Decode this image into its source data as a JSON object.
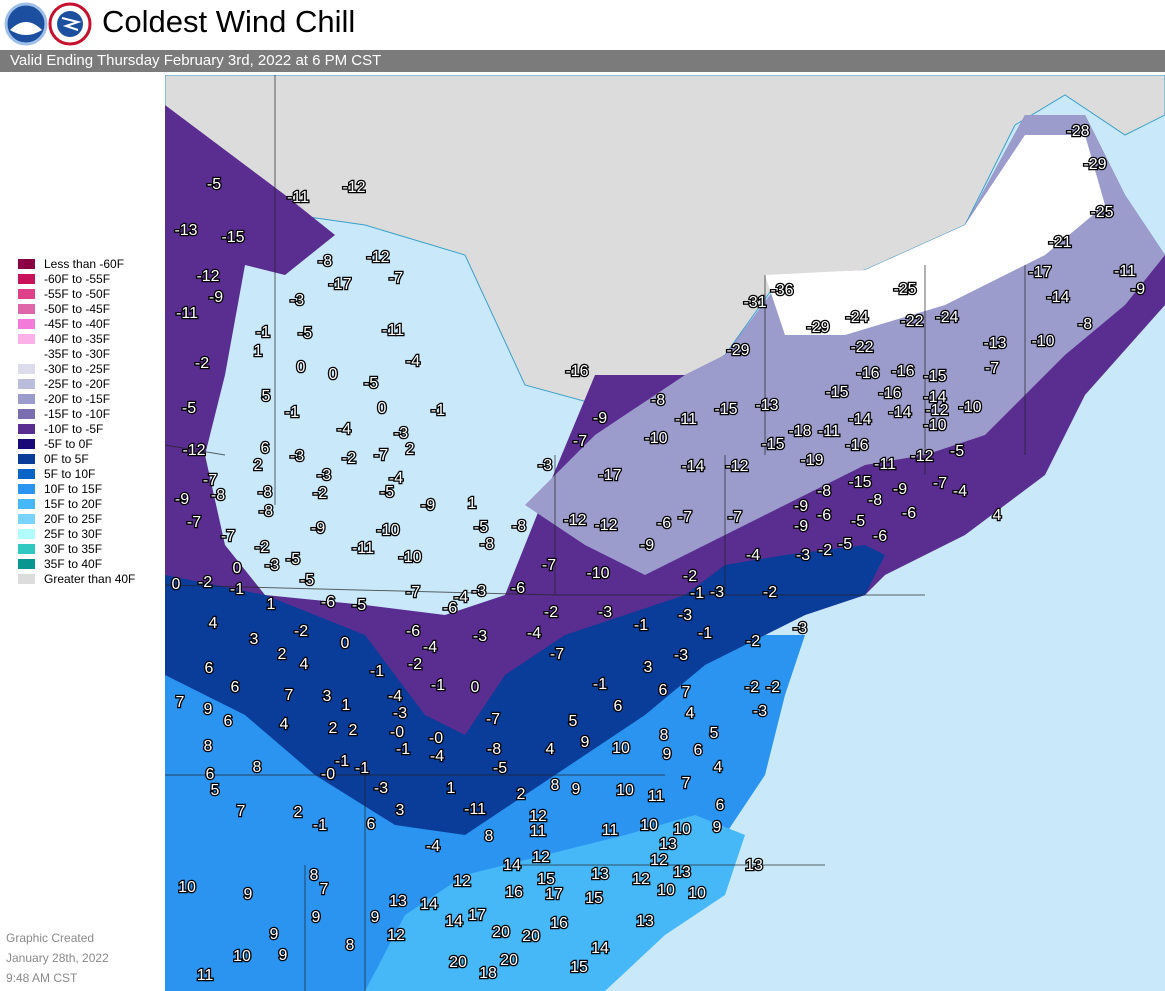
{
  "header": {
    "title": "Coldest Wind Chill",
    "subtitle": "Valid Ending Thursday February 3rd, 2022 at 6 PM CST"
  },
  "legend": [
    {
      "label": "Less than -60F",
      "color": "#8b0045"
    },
    {
      "label": "-60F to -55F",
      "color": "#c8125a"
    },
    {
      "label": "-55F to -50F",
      "color": "#e0408a"
    },
    {
      "label": "-50F to -45F",
      "color": "#e066aa"
    },
    {
      "label": "-45F to -40F",
      "color": "#f27ad8"
    },
    {
      "label": "-40F to -35F",
      "color": "#fbb0e8"
    },
    {
      "label": "-35F to -30F",
      "color": "#ffffff"
    },
    {
      "label": "-30F to -25F",
      "color": "#dcdcec"
    },
    {
      "label": "-25F to -20F",
      "color": "#bcbcdc"
    },
    {
      "label": "-20F to -15F",
      "color": "#9c9ccc"
    },
    {
      "label": "-15F to -10F",
      "color": "#7a6eb0"
    },
    {
      "label": "-10F to -5F",
      "color": "#5a2d90"
    },
    {
      "label": "-5F to 0F",
      "color": "#1a0a78"
    },
    {
      "label": "0F to 5F",
      "color": "#0a3c9a"
    },
    {
      "label": "5F to 10F",
      "color": "#0a64c8"
    },
    {
      "label": "10F to 15F",
      "color": "#2a94f0"
    },
    {
      "label": "15F to 20F",
      "color": "#46b8f8"
    },
    {
      "label": "20F to 25F",
      "color": "#78d4fc"
    },
    {
      "label": "25F to 30F",
      "color": "#b0fcfc"
    },
    {
      "label": "30F to 35F",
      "color": "#30c8c0"
    },
    {
      "label": "35F to 40F",
      "color": "#0a9690"
    },
    {
      "label": "Greater than 40F",
      "color": "#dcdcdc"
    }
  ],
  "footer": [
    "Graphic Created",
    "January 28th, 2022",
    "9:48 AM CST"
  ],
  "map_labels": [
    "-28",
    "-29",
    "-25",
    "-21",
    "-17",
    "-11",
    "-9",
    "-14",
    "-8",
    "-13",
    "-10",
    "-7",
    "-36",
    "-31",
    "-25",
    "-24",
    "-22",
    "-24",
    "-29",
    "-22",
    "-29",
    "-16",
    "-16",
    "-16",
    "-15",
    "-15",
    "-16",
    "-14",
    "-10",
    "-12",
    "-14",
    "-14",
    "-10",
    "-8",
    "-9",
    "-11",
    "-15",
    "-13",
    "-18",
    "-11",
    "-10",
    "-7",
    "-15",
    "-16",
    "-12",
    "-5",
    "-19",
    "-11",
    "-14",
    "-12",
    "-17",
    "-3",
    "-15",
    "-9",
    "-7",
    "-4",
    "-8",
    "-6",
    "-8",
    "-9",
    "4",
    "-5",
    "-6",
    "-6",
    "-9",
    "-5",
    "-2",
    "-3",
    "-4",
    "-12",
    "-12",
    "-6",
    "-7",
    "-7",
    "-9",
    "-10",
    "-7",
    "-2",
    "-1",
    "-3",
    "-2",
    "-3",
    "-2",
    "-3",
    "-3",
    "-1",
    "-4",
    "-1",
    "-2",
    "-7",
    "-3",
    "-2",
    "-2",
    "-3",
    "-1",
    "3",
    "6",
    "7",
    "4",
    "5",
    "8",
    "6",
    "4",
    "5",
    "6",
    "9",
    "10",
    "9",
    "7",
    "4",
    "-8",
    "-5",
    "-7",
    "0",
    "-1",
    "-3",
    "8",
    "9",
    "10",
    "11",
    "2",
    "12",
    "11",
    "8",
    "11",
    "10",
    "10",
    "9",
    "6",
    "13",
    "12",
    "14",
    "15",
    "13",
    "12",
    "12",
    "13",
    "10",
    "10",
    "13",
    "13",
    "12",
    "16",
    "17",
    "15",
    "14",
    "13",
    "17",
    "14",
    "16",
    "20",
    "20",
    "12",
    "14",
    "20",
    "20",
    "18",
    "15",
    "-11",
    "-4",
    "1",
    "-3",
    "3",
    "6",
    "-1",
    "2",
    "7",
    "8",
    "6",
    "5",
    "-0",
    "-1",
    "-1",
    "-1",
    "-4",
    "-0",
    "-0",
    "2",
    "2",
    "-3",
    "1",
    "3",
    "-4",
    "-1",
    "7",
    "4",
    "8",
    "6",
    "9",
    "7",
    "6",
    "6",
    "2",
    "4",
    "3",
    "4",
    "1",
    "-2",
    "0",
    "-2",
    "-4",
    "-6",
    "-1",
    "0",
    "-2",
    "-3",
    "-5",
    "-5",
    "-6",
    "-5",
    "-7",
    "-6",
    "-4",
    "-3",
    "-6",
    "-2",
    "0",
    "-7",
    "-7",
    "-8",
    "-9",
    "-8",
    "-8",
    "-2",
    "-3",
    "-5",
    "-9",
    "-10",
    "-11",
    "-10",
    "-9",
    "1",
    "-5",
    "-8",
    "-8",
    "-4",
    "-7",
    "-2",
    "-3",
    "2",
    "6",
    "-7",
    "-12",
    "-5",
    "-2",
    "-11",
    "-9",
    "-12",
    "-13",
    "-15",
    "-5",
    "-11",
    "-12",
    "-8",
    "-17",
    "-12",
    "-7",
    "-3",
    "-1",
    "-5",
    "1",
    "0",
    "0",
    "-5",
    "-11",
    "-4",
    "5",
    "-1",
    "0",
    "-1",
    "-4",
    "-3",
    "2",
    "10",
    "9",
    "8",
    "7",
    "9",
    "9",
    "9",
    "8",
    "9",
    "10",
    "11",
    "9",
    "15"
  ]
}
